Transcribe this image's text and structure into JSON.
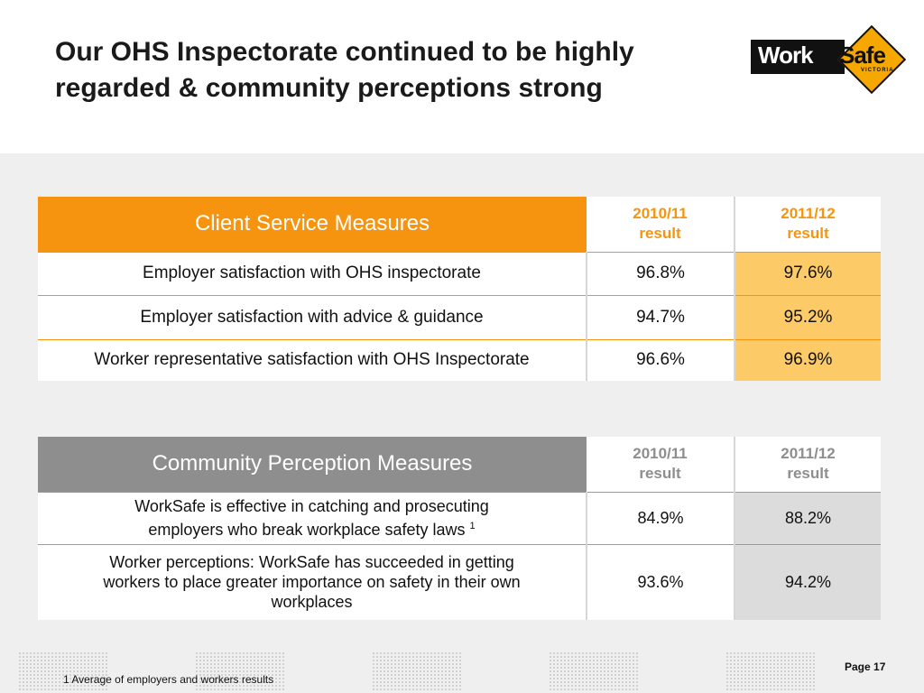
{
  "slide": {
    "title_line1": "Our OHS Inspectorate continued to be highly",
    "title_line2": "regarded & community perceptions strong"
  },
  "logo": {
    "text_work": "Work",
    "text_safe": "Safe",
    "text_region": "VICTORIA"
  },
  "client_table": {
    "header": "Client Service Measures",
    "col_a_line1": "2010/11",
    "col_a_line2": "result",
    "col_b_line1": "2011/12",
    "col_b_line2": "result",
    "rows": [
      {
        "label": "Employer satisfaction with OHS inspectorate",
        "a": "96.8%",
        "b": "97.6%"
      },
      {
        "label": "Employer satisfaction with advice & guidance",
        "a": "94.7%",
        "b": "95.2%"
      },
      {
        "label": "Worker representative satisfaction with OHS Inspectorate",
        "a": "96.6%",
        "b": "96.9%"
      }
    ]
  },
  "community_table": {
    "header": "Community Perception Measures",
    "col_a_line1": "2010/11",
    "col_a_line2": "result",
    "col_b_line1": "2011/12",
    "col_b_line2": "result",
    "rows": [
      {
        "label_line1": "WorkSafe is effective in catching and prosecuting",
        "label_line2": "employers who break workplace safety laws",
        "footnote_ref": "1",
        "a": "84.9%",
        "b": "88.2%"
      },
      {
        "label_line1": "Worker perceptions: WorkSafe has succeeded in getting",
        "label_line2": "workers to place greater importance on safety in their own",
        "label_line3": "workplaces",
        "a": "93.6%",
        "b": "94.2%"
      }
    ]
  },
  "footer": {
    "footnote": "1 Average of employers and workers results",
    "page_label": "Page 17"
  },
  "colors": {
    "accent_orange": "#f7940f",
    "highlight_orange": "#fdca68",
    "header_grey": "#8e8e8e",
    "highlight_grey": "#dcdcdc"
  }
}
